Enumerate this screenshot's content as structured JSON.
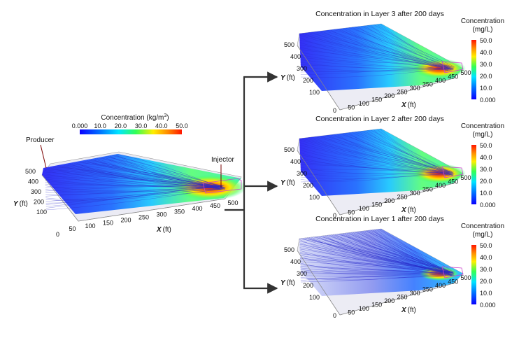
{
  "main_panel": {
    "colorbar": {
      "title_prefix": "Concentration (kg/m",
      "title_sup": "3",
      "title_suffix": ")",
      "ticks": [
        "0.000",
        "10.0",
        "20.0",
        "30.0",
        "40.0",
        "50.0"
      ]
    },
    "annotations": {
      "producer": "Producer",
      "injector": "Injector"
    },
    "y_ticks": [
      "500",
      "400",
      "300",
      "200",
      "100"
    ],
    "x_ticks": [
      "0",
      "50",
      "100",
      "150",
      "200",
      "250",
      "300",
      "350",
      "400",
      "450",
      "500"
    ],
    "origin": "0",
    "y_axis": {
      "name": "Y",
      "unit": "(ft)"
    },
    "x_axis": {
      "name": "X",
      "unit": "(ft)"
    }
  },
  "layer_panels": [
    {
      "title": "Concentration in Layer 3 after 200 days",
      "y_ticks": [
        "500",
        "400",
        "300",
        "200",
        "100"
      ],
      "x_ticks": [
        "0",
        "50",
        "100",
        "150",
        "200",
        "250",
        "300",
        "350",
        "400",
        "450",
        "500"
      ],
      "origin": "0",
      "y_axis": {
        "name": "Y",
        "unit": "(ft)"
      },
      "x_axis": {
        "name": "X",
        "unit": "(ft)"
      },
      "colorbar": {
        "title_line1": "Concentration",
        "title_line2": "(mg/L)",
        "ticks": [
          "50.0",
          "40.0",
          "30.0",
          "20.0",
          "10.0",
          "0.000"
        ]
      }
    },
    {
      "title": "Concentration in Layer 2 after 200 days",
      "y_ticks": [
        "500",
        "400",
        "300",
        "200",
        "100"
      ],
      "x_ticks": [
        "0",
        "50",
        "100",
        "150",
        "200",
        "250",
        "300",
        "350",
        "400",
        "450",
        "500"
      ],
      "origin": "0",
      "y_axis": {
        "name": "Y",
        "unit": "(ft)"
      },
      "x_axis": {
        "name": "X",
        "unit": "(ft)"
      },
      "colorbar": {
        "title_line1": "Concentration",
        "title_line2": "(mg/L)",
        "ticks": [
          "50.0",
          "40.0",
          "30.0",
          "20.0",
          "10.0",
          "0.000"
        ]
      }
    },
    {
      "title": "Concentration in Layer 1 after 200 days",
      "y_ticks": [
        "500",
        "400",
        "300",
        "200",
        "100"
      ],
      "x_ticks": [
        "0",
        "50",
        "100",
        "150",
        "200",
        "250",
        "300",
        "350",
        "400",
        "450",
        "500"
      ],
      "origin": "0",
      "y_axis": {
        "name": "Y",
        "unit": "(ft)"
      },
      "x_axis": {
        "name": "X",
        "unit": "(ft)"
      },
      "colorbar": {
        "title_line1": "Concentration",
        "title_line2": "(mg/L)",
        "ticks": [
          "50.0",
          "40.0",
          "30.0",
          "20.0",
          "10.0",
          "0.000"
        ]
      }
    }
  ],
  "colors": {
    "low": "#1414ff",
    "high": "#ff1e00",
    "arrow": "#333333",
    "streamline": "#2828c8"
  }
}
